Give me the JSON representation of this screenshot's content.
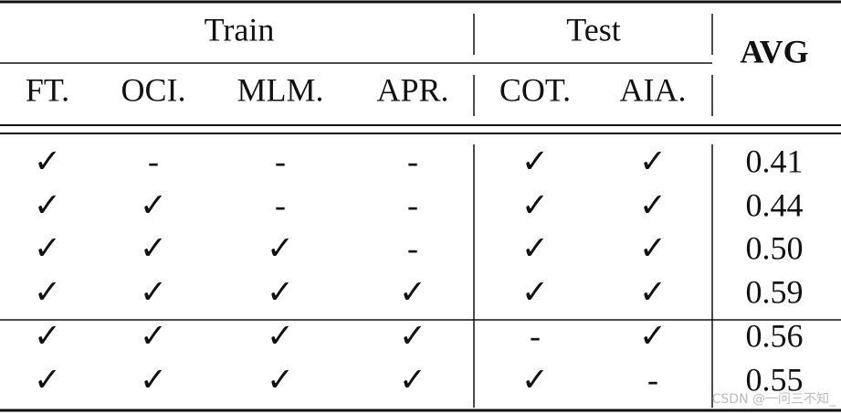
{
  "table": {
    "groups": [
      "Train",
      "Test"
    ],
    "avg_header": "AVG",
    "columns": [
      "FT.",
      "OCI.",
      "MLM.",
      "APR.",
      "COT.",
      "AIA."
    ],
    "rows": [
      [
        "✓",
        "-",
        "-",
        "-",
        "✓",
        "✓",
        "0.41"
      ],
      [
        "✓",
        "✓",
        "-",
        "-",
        "✓",
        "✓",
        "0.44"
      ],
      [
        "✓",
        "✓",
        "✓",
        "-",
        "✓",
        "✓",
        "0.50"
      ],
      [
        "✓",
        "✓",
        "✓",
        "✓",
        "✓",
        "✓",
        "0.59"
      ],
      [
        "✓",
        "✓",
        "✓",
        "✓",
        "-",
        "✓",
        "0.56"
      ],
      [
        "✓",
        "✓",
        "✓",
        "✓",
        "✓",
        "-",
        "0.55"
      ]
    ]
  },
  "watermark": "CSDN @一问三不知_"
}
